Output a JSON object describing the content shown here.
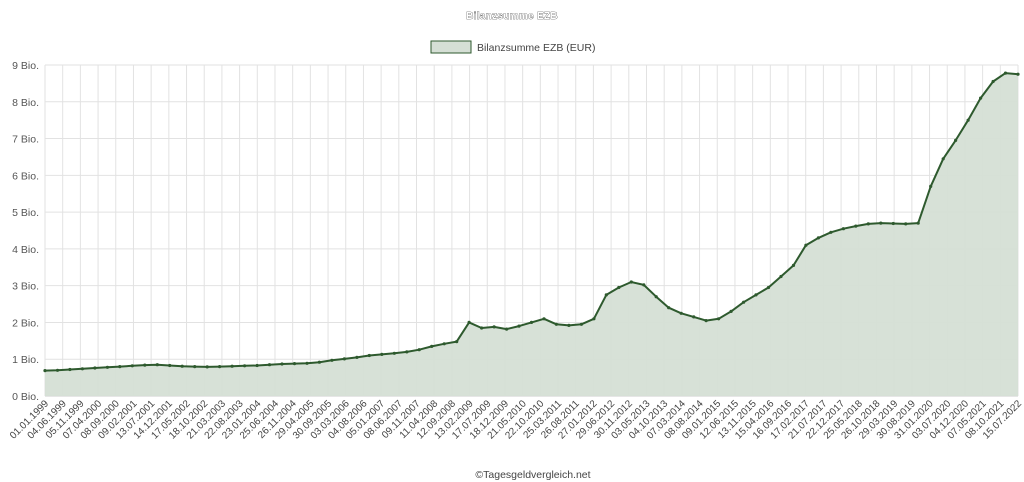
{
  "chart_data": {
    "type": "area",
    "title": "Bilanzsumme EZB",
    "legend": {
      "position": "top-center",
      "entries": [
        "Bilanzsumme EZB (EUR)"
      ]
    },
    "colors": {
      "line": "#2e5a2e",
      "fill": "#d5dfd5",
      "legend_border": "#2e5a2e"
    },
    "grid": true,
    "ylim": [
      0,
      9
    ],
    "y_ticks": [
      "0 Bio.",
      "1 Bio.",
      "2 Bio.",
      "3 Bio.",
      "4 Bio.",
      "5 Bio.",
      "6 Bio.",
      "7 Bio.",
      "8 Bio.",
      "9 Bio."
    ],
    "x_tick_labels": [
      "01.01.1999",
      "04.06.1999",
      "05.11.1999",
      "07.04.2000",
      "08.09.2000",
      "09.02.2001",
      "13.07.2001",
      "14.12.2001",
      "17.05.2002",
      "18.10.2002",
      "21.03.2003",
      "22.08.2003",
      "23.01.2004",
      "25.06.2004",
      "26.11.2004",
      "29.04.2005",
      "30.09.2005",
      "03.03.2006",
      "04.08.2006",
      "05.01.2007",
      "08.06.2007",
      "09.11.2007",
      "11.04.2008",
      "12.09.2008",
      "13.02.2009",
      "17.07.2009",
      "18.12.2009",
      "21.05.2010",
      "22.10.2010",
      "25.03.2011",
      "26.08.2011",
      "27.01.2012",
      "29.06.2012",
      "30.11.2012",
      "03.05.2013",
      "04.10.2013",
      "07.03.2014",
      "08.08.2014",
      "09.01.2015",
      "12.06.2015",
      "13.11.2015",
      "15.04.2016",
      "16.09.2016",
      "17.02.2017",
      "21.07.2017",
      "22.12.2017",
      "25.05.2018",
      "26.10.2018",
      "29.03.2019",
      "30.08.2019",
      "31.01.2020",
      "03.07.2020",
      "04.12.2020",
      "07.05.2021",
      "08.10.2021",
      "15.07.2022"
    ],
    "series": [
      {
        "name": "Bilanzsumme EZB (EUR)",
        "values": [
          0.69,
          0.7,
          0.72,
          0.74,
          0.76,
          0.78,
          0.8,
          0.82,
          0.84,
          0.85,
          0.83,
          0.81,
          0.8,
          0.79,
          0.8,
          0.81,
          0.82,
          0.83,
          0.85,
          0.87,
          0.88,
          0.89,
          0.92,
          0.97,
          1.01,
          1.05,
          1.1,
          1.13,
          1.16,
          1.2,
          1.26,
          1.35,
          1.42,
          1.48,
          2.0,
          1.85,
          1.88,
          1.82,
          1.9,
          2.0,
          2.1,
          1.95,
          1.92,
          1.95,
          2.1,
          2.75,
          2.95,
          3.1,
          3.02,
          2.7,
          2.4,
          2.25,
          2.15,
          2.05,
          2.1,
          2.3,
          2.55,
          2.75,
          2.95,
          3.25,
          3.55,
          4.1,
          4.3,
          4.45,
          4.55,
          4.62,
          4.68,
          4.7,
          4.69,
          4.68,
          4.7,
          5.7,
          6.45,
          6.95,
          7.5,
          8.1,
          8.55,
          8.78,
          8.75
        ]
      }
    ]
  },
  "footer": {
    "copyright": "©Tagesgeldvergleich.net"
  }
}
